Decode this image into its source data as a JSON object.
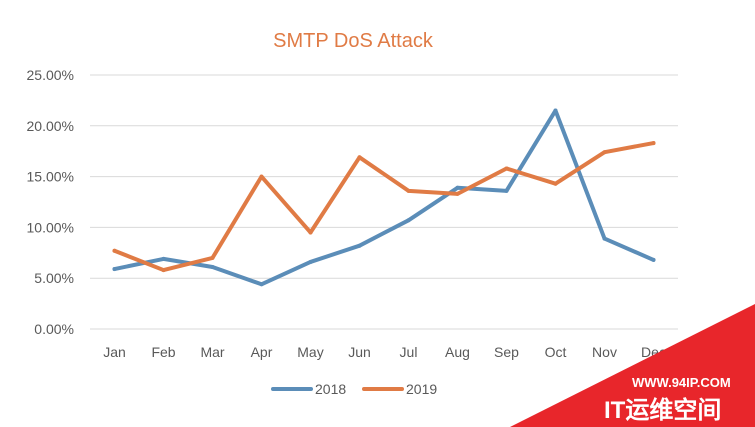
{
  "chart_data": {
    "type": "line",
    "title": "SMTP DoS Attack",
    "xlabel": "",
    "ylabel": "",
    "categories": [
      "Jan",
      "Feb",
      "Mar",
      "Apr",
      "May",
      "Jun",
      "Jul",
      "Aug",
      "Sep",
      "Oct",
      "Nov",
      "Dec"
    ],
    "y_ticks": [
      "0.00%",
      "5.00%",
      "10.00%",
      "15.00%",
      "20.00%",
      "25.00%"
    ],
    "ylim": [
      0,
      25
    ],
    "grid": true,
    "legend_position": "bottom",
    "series": [
      {
        "name": "2018",
        "color": "#5B8DB8",
        "values": [
          5.9,
          6.9,
          6.1,
          4.4,
          6.6,
          8.2,
          10.7,
          13.9,
          13.6,
          21.5,
          8.9,
          6.8
        ]
      },
      {
        "name": "2019",
        "color": "#E07B45",
        "values": [
          7.7,
          5.8,
          7.0,
          15.0,
          9.5,
          16.9,
          13.6,
          13.3,
          15.8,
          14.3,
          17.4,
          18.3
        ]
      }
    ]
  },
  "colors": {
    "title": "#E07B45",
    "grid": "#D9D9D9",
    "text": "#595959",
    "watermark": "#E8262B"
  },
  "watermark": {
    "url": "WWW.94IP.COM",
    "brand": "IT运维空间"
  }
}
